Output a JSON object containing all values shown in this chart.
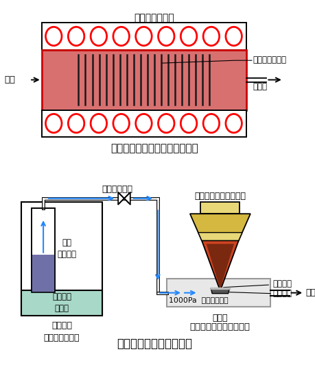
{
  "title_top": "従来型ホットウォール熱酸化炉",
  "title_bottom": "新型高濃度オゾン酸化炉",
  "label_lamp_heater": "ランプヒーター",
  "label_silicon_wafer": "シリコンウエハ",
  "label_quartz_tube1": "石英管",
  "label_oxygen": "酸素",
  "label_high_ozone": "高濃度オゾン",
  "label_liquid_ozone": "液体\n純オゾン",
  "label_cryo": "クライオ\n冷凍機",
  "label_ultra_ozone": "超高濃度\nオゾン発生装置",
  "label_ir_lamp": "赤外線ランプヒーター",
  "label_silicon": "シリコン",
  "label_susceptor": "サセプタ",
  "label_1000pa": "1000Pa  高濃度オゾン",
  "label_quartz_tube2": "石英管",
  "label_coldwall": "コールドウォール石英炉",
  "label_exhaust": "排気",
  "circle_color": "#ff0000",
  "furnace_fill": "#d97070",
  "furnace_border": "#cc0000",
  "wafer_color": "#1a1a1a",
  "cryo_fill": "#a8d8c8",
  "ozone_fill": "#7070a8",
  "ir_lamp_top_fill": "#d4b840",
  "ir_lamp_yellow": "#e8d878",
  "ir_lamp_cone_fill": "#cc4422",
  "ir_lamp_cone_dark": "#7a2810",
  "quartz_box_fill": "#e8e8e8",
  "quartz_box_border": "#999999",
  "arrow_color": "#2288ff",
  "black": "#000000"
}
